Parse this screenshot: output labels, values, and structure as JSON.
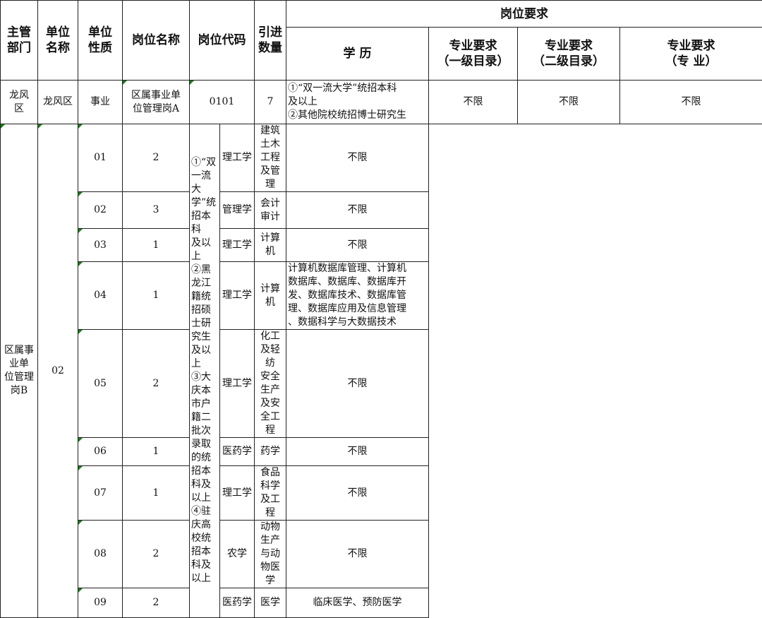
{
  "header": {
    "dept": "主管\n部门",
    "unit": "单位\n名称",
    "nature": "单位\n性质",
    "post_name": "岗位名称",
    "post_code": "岗位代码",
    "count": "引进\n数量",
    "requirements": "岗位要求",
    "education": "学  历",
    "major1": "专业要求\n（一级目录）",
    "major2": "专业要求\n（二级目录）",
    "major3": "专业要求\n（专  业）"
  },
  "dept": "龙风\n区",
  "unit": "龙风区",
  "nature": "事业",
  "rowA": {
    "name": "区属事业单\n位管理岗A",
    "code": "0101",
    "count": "7",
    "education": "①“双一流大学”统招本科\n及以上\n②其他院校统招博士研究生",
    "major1": "不限",
    "major2": "不限",
    "major3": "不限"
  },
  "groupB": {
    "name": "区属事业单\n位管理岗B",
    "code": "02",
    "education": "①“双一流大学”统招本科\n及以上\n②黑龙江籍统招硕士研究生\n及以上\n③大庆本市户籍二批次录取\n的统招本科及以上\n④驻庆高校统招本科及以上",
    "rows": [
      {
        "sub": "01",
        "count": "2",
        "major1": "理工学",
        "major2": "建筑土木工程及管\n理",
        "major3": "不限"
      },
      {
        "sub": "02",
        "count": "3",
        "major1": "管理学",
        "major2": "会计审计",
        "major3": "不限"
      },
      {
        "sub": "03",
        "count": "1",
        "major1": "理工学",
        "major2": "计算机",
        "major3": "不限"
      },
      {
        "sub": "04",
        "count": "1",
        "major1": "理工学",
        "major2": "计算机",
        "major3": "计算机数据库管理、计算机\n数据库、数据库、数据库开\n发、数据库技术、数据库管\n理、数据库应用及信息管理\n、数据科学与大数据技术"
      },
      {
        "sub": "05",
        "count": "2",
        "major1": "理工学",
        "major2": "化工及轻纺\n安全生产及安全工\n程",
        "major3": "不限"
      },
      {
        "sub": "06",
        "count": "1",
        "major1": "医药学",
        "major2": "药学",
        "major3": "不限"
      },
      {
        "sub": "07",
        "count": "1",
        "major1": "理工学",
        "major2": "食品科学及工程",
        "major3": "不限"
      },
      {
        "sub": "08",
        "count": "2",
        "major1": "农学",
        "major2": "动物生产与动物医\n学",
        "major3": "不限"
      },
      {
        "sub": "09",
        "count": "2",
        "major1": "医药学",
        "major2": "医学",
        "major3": "临床医学、预防医学"
      }
    ]
  }
}
